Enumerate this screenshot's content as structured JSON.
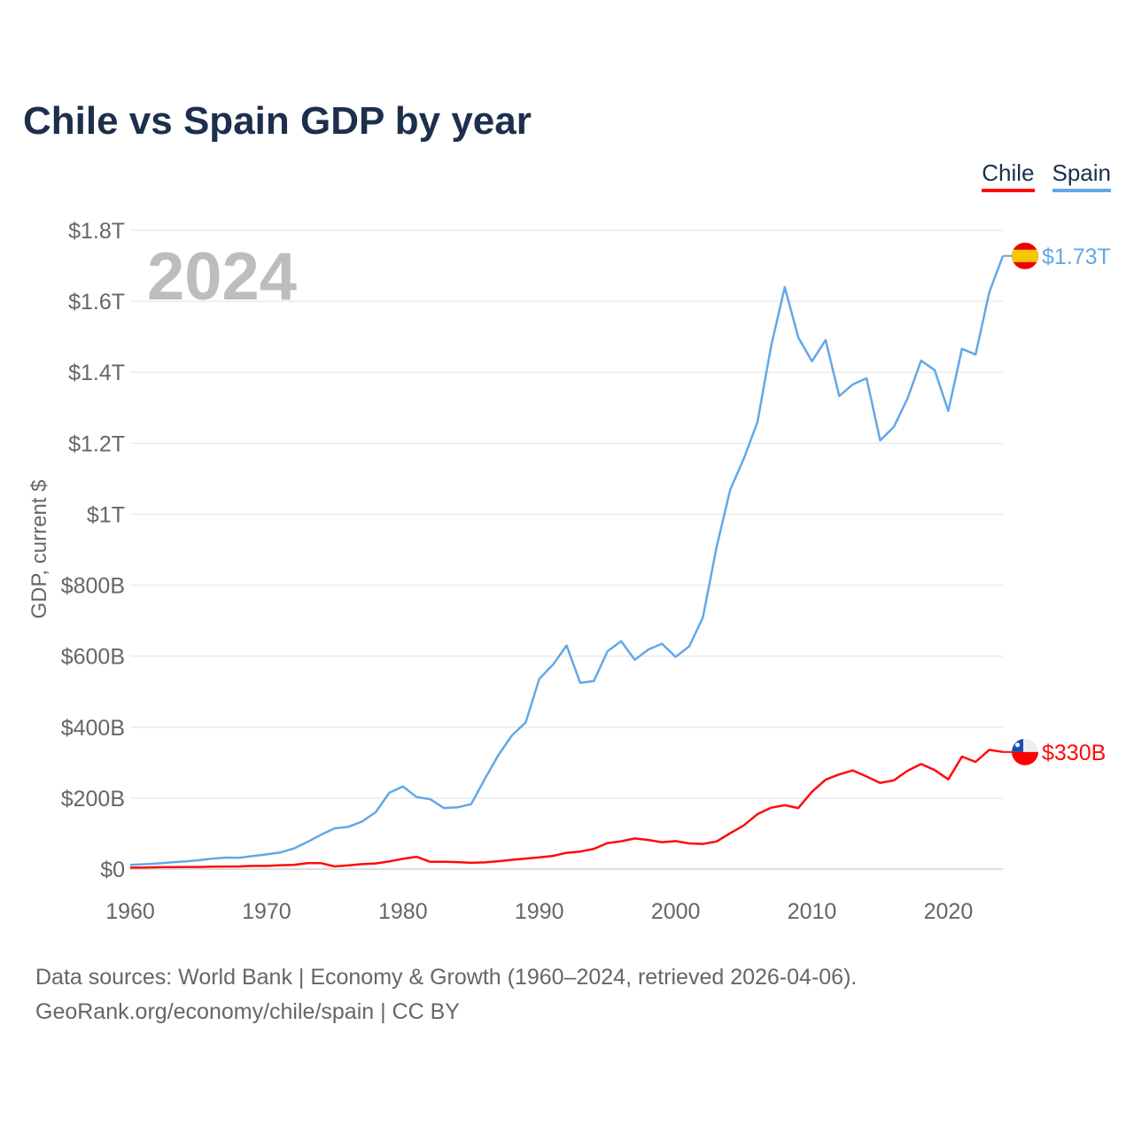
{
  "chart_data": {
    "type": "line",
    "title": "Chile vs Spain GDP by year",
    "ylabel": "GDP, current $",
    "xlabel": "",
    "xlim": [
      1960,
      2024
    ],
    "ylim": [
      0,
      1800
    ],
    "y_unit": "billions USD",
    "grid": true,
    "legend_placement": "top-right",
    "highlight_year": "2024",
    "x_ticks": [
      "1960",
      "1970",
      "1980",
      "1990",
      "2000",
      "2010",
      "2020"
    ],
    "y_ticks": [
      {
        "v": 0,
        "label": "$0"
      },
      {
        "v": 200,
        "label": "$200B"
      },
      {
        "v": 400,
        "label": "$400B"
      },
      {
        "v": 600,
        "label": "$600B"
      },
      {
        "v": 800,
        "label": "$800B"
      },
      {
        "v": 1000,
        "label": "$1T"
      },
      {
        "v": 1200,
        "label": "$1.2T"
      },
      {
        "v": 1400,
        "label": "$1.4T"
      },
      {
        "v": 1600,
        "label": "$1.6T"
      },
      {
        "v": 1800,
        "label": "$1.8T"
      }
    ],
    "x": [
      1960,
      1961,
      1962,
      1963,
      1964,
      1965,
      1966,
      1967,
      1968,
      1969,
      1970,
      1971,
      1972,
      1973,
      1974,
      1975,
      1976,
      1977,
      1978,
      1979,
      1980,
      1981,
      1982,
      1983,
      1984,
      1985,
      1986,
      1987,
      1988,
      1989,
      1990,
      1991,
      1992,
      1993,
      1994,
      1995,
      1996,
      1997,
      1998,
      1999,
      2000,
      2001,
      2002,
      2003,
      2004,
      2005,
      2006,
      2007,
      2008,
      2009,
      2010,
      2011,
      2012,
      2013,
      2014,
      2015,
      2016,
      2017,
      2018,
      2019,
      2020,
      2021,
      2022,
      2023,
      2024
    ],
    "series": [
      {
        "name": "Chile",
        "color": "#ff0a0a",
        "end_label": "$330B",
        "values": [
          4,
          4.6,
          5.3,
          5.7,
          5.9,
          5.9,
          7,
          7.3,
          7.6,
          8.9,
          9.1,
          11,
          12,
          17,
          16.8,
          7.6,
          10.4,
          14,
          15.9,
          21.7,
          28.9,
          34.6,
          20.5,
          20.6,
          19.6,
          17.7,
          18.9,
          22.3,
          26.1,
          29.8,
          33.1,
          37.1,
          45.9,
          49.4,
          57.1,
          73.4,
          78.4,
          86.3,
          82.1,
          75.9,
          78.9,
          72.3,
          71,
          77.8,
          101,
          123,
          155,
          173,
          180,
          172,
          218,
          252,
          267,
          278,
          261,
          243,
          250,
          277,
          296,
          279,
          253,
          317,
          302,
          336,
          330
        ]
      },
      {
        "name": "Spain",
        "color": "#62a8e8",
        "end_label": "$1.73T",
        "values": [
          12,
          13.8,
          16.1,
          19,
          21.5,
          25,
          29.2,
          32.5,
          31.9,
          36.9,
          41.4,
          46.6,
          58.1,
          76.6,
          97,
          115,
          119,
          134,
          160,
          215,
          233,
          203,
          197,
          172,
          174,
          183,
          254,
          321,
          377,
          413,
          536,
          576,
          630,
          525,
          530,
          614,
          642,
          590,
          619,
          635,
          598,
          628,
          709,
          907,
          1069,
          1157,
          1260,
          1474,
          1640,
          1498,
          1431,
          1491,
          1333,
          1366,
          1383,
          1208,
          1246,
          1326,
          1433,
          1406,
          1291,
          1466,
          1450,
          1625,
          1728
        ]
      }
    ]
  },
  "legend": {
    "chile": "Chile",
    "spain": "Spain"
  },
  "footer": {
    "line1": "Data sources: World Bank | Economy & Growth (1960–2024, retrieved 2026-04-06).",
    "line2": "GeoRank.org/economy/chile/spain | CC BY"
  }
}
